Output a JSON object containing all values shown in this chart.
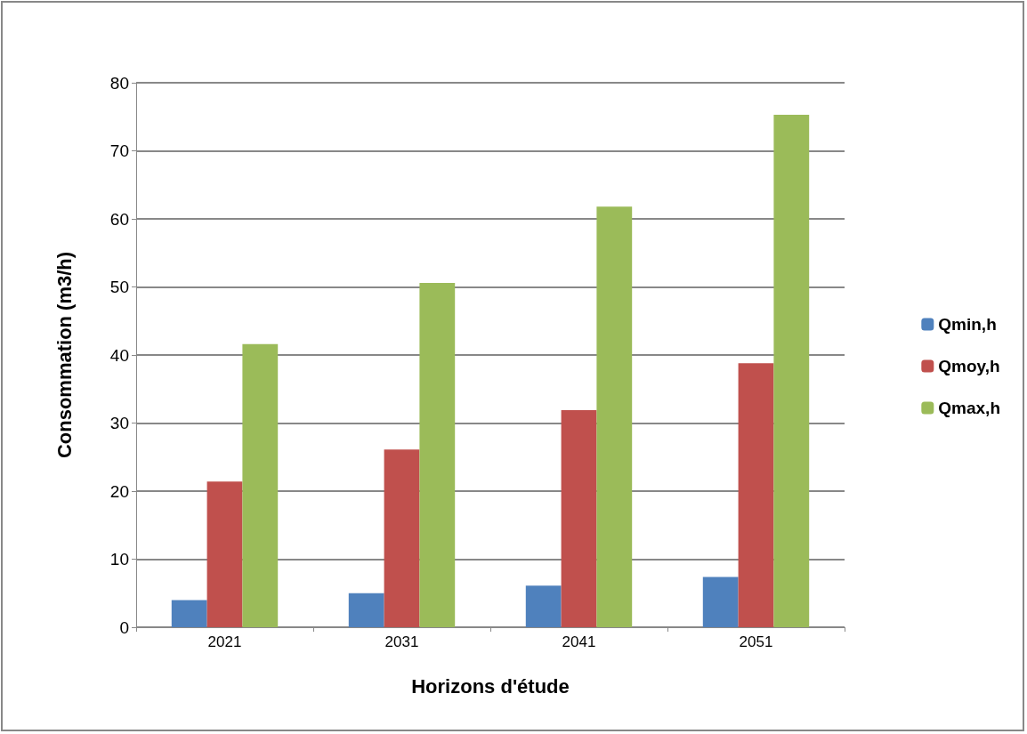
{
  "chart_data": {
    "type": "bar",
    "xlabel": "Horizons d'étude",
    "ylabel": "Consommation (m3/h)",
    "categories": [
      "2021",
      "2031",
      "2041",
      "2051"
    ],
    "series": [
      {
        "name": "Qmin,h",
        "color": "#4f81bd",
        "values": [
          4,
          5,
          6.1,
          7.4
        ]
      },
      {
        "name": "Qmoy,h",
        "color": "#c0504d",
        "values": [
          21.4,
          26.1,
          31.9,
          38.8
        ]
      },
      {
        "name": "Qmax,h",
        "color": "#9bbb59",
        "values": [
          41.6,
          50.6,
          61.8,
          75.3
        ]
      }
    ],
    "ylim": [
      0,
      80
    ],
    "yticks": [
      0,
      10,
      20,
      30,
      40,
      50,
      60,
      70,
      80
    ],
    "grid": "y",
    "legend": "right"
  }
}
